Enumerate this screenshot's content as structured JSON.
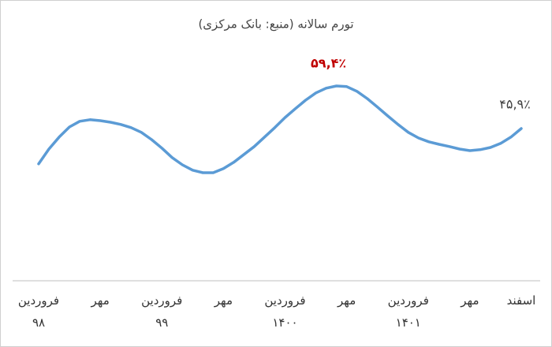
{
  "chart_data": {
    "type": "line",
    "title": "تورم سالانه (منبع: بانک مرکزی)",
    "categories": [
      "فروردین\n۹۸",
      null,
      null,
      null,
      null,
      null,
      "مهر",
      null,
      null,
      null,
      null,
      null,
      "فروردین\n۹۹",
      null,
      null,
      null,
      null,
      null,
      "مهر",
      null,
      null,
      null,
      null,
      null,
      "فروردین\n۱۴۰۰",
      null,
      null,
      null,
      null,
      null,
      "مهر",
      null,
      null,
      null,
      null,
      null,
      "فروردین\n۱۴۰۱",
      null,
      null,
      null,
      null,
      null,
      "مهر",
      null,
      null,
      null,
      null,
      "اسفند"
    ],
    "series": [
      {
        "name": "تورم سالانه",
        "color": "#5b9bd5",
        "values": [
          34.7,
          39.4,
          43.2,
          46.4,
          48.2,
          48.7,
          48.4,
          47.9,
          47.2,
          46.2,
          44.7,
          42.4,
          39.7,
          36.7,
          34.4,
          32.7,
          31.9,
          31.9,
          33.2,
          35.2,
          37.7,
          40.2,
          43.2,
          46.2,
          49.4,
          52.2,
          54.9,
          57.2,
          58.7,
          59.4,
          59.2,
          57.7,
          55.4,
          52.7,
          49.9,
          47.2,
          44.7,
          42.9,
          41.7,
          40.9,
          40.2,
          39.4,
          38.9,
          39.2,
          39.9,
          41.2,
          43.2,
          45.9
        ],
        "value_labels": [
          null,
          null,
          null,
          null,
          null,
          null,
          null,
          null,
          null,
          null,
          null,
          null,
          null,
          null,
          null,
          null,
          null,
          null,
          null,
          null,
          null,
          null,
          null,
          null,
          null,
          null,
          null,
          null,
          null,
          "۵۹,۴٪",
          null,
          null,
          null,
          null,
          null,
          null,
          null,
          null,
          null,
          null,
          null,
          null,
          null,
          null,
          null,
          null,
          null,
          "۴۵,۹٪"
        ]
      }
    ],
    "highlight_color": "#c00000"
  }
}
